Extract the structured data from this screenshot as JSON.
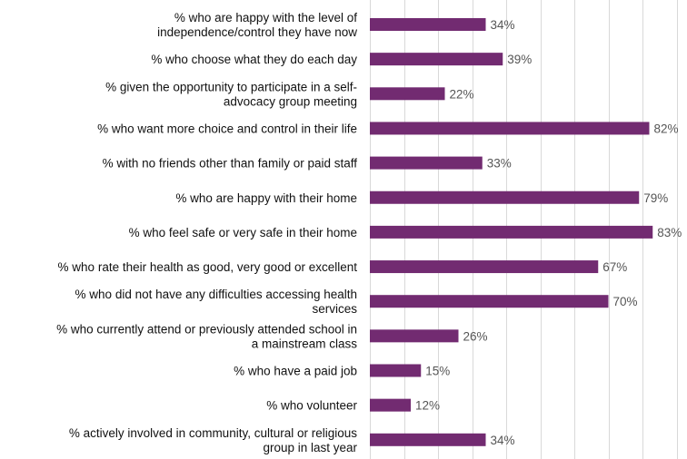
{
  "colors": {
    "bar": "#722b71",
    "grid": "#d9d9d9",
    "label_text": "#111111",
    "value_text": "#555555"
  },
  "chart_data": {
    "type": "bar",
    "orientation": "horizontal",
    "grid": true,
    "grid_direction": "vertical",
    "xlim": [
      0,
      90
    ],
    "grid_step": 10,
    "value_format": "percent",
    "categories": [
      "% who are happy with the level of independence/control they have now",
      "% who choose what they do each day",
      "% given the opportunity to participate in a self-advocacy group meeting",
      "% who want more choice and control in their life",
      "% with no friends other than family or paid staff",
      "% who are happy with their home",
      "% who feel safe or very safe in their home",
      "% who rate their health as good, very good or excellent",
      "% who did not have any difficulties accessing health services",
      "% who currently attend or previously attended school in a mainstream class",
      "% who have a paid job",
      "% who volunteer",
      "% actively involved in community, cultural or religious group in last year"
    ],
    "category_lines": [
      [
        "% who are happy with the level of",
        "independence/control they have now"
      ],
      [
        "% who choose what they do each day"
      ],
      [
        "% given the opportunity to participate in a self-",
        "advocacy group meeting"
      ],
      [
        "% who want more choice and control in their life"
      ],
      [
        "% with no friends other than family or paid staff"
      ],
      [
        "% who are happy with their home"
      ],
      [
        "% who feel safe or very safe in their home"
      ],
      [
        "% who rate their health as good, very good or excellent"
      ],
      [
        "% who did not have any difficulties accessing health",
        "services"
      ],
      [
        "% who currently attend or previously attended school in",
        "a mainstream class"
      ],
      [
        "% who have a paid job"
      ],
      [
        "% who volunteer"
      ],
      [
        "% actively involved in community, cultural or religious",
        "group in last year"
      ]
    ],
    "values": [
      34,
      39,
      22,
      82,
      33,
      79,
      83,
      67,
      70,
      26,
      15,
      12,
      34
    ],
    "value_labels": [
      "34%",
      "39%",
      "22%",
      "82%",
      "33%",
      "79%",
      "83%",
      "67%",
      "70%",
      "26%",
      "15%",
      "12%",
      "34%"
    ]
  }
}
